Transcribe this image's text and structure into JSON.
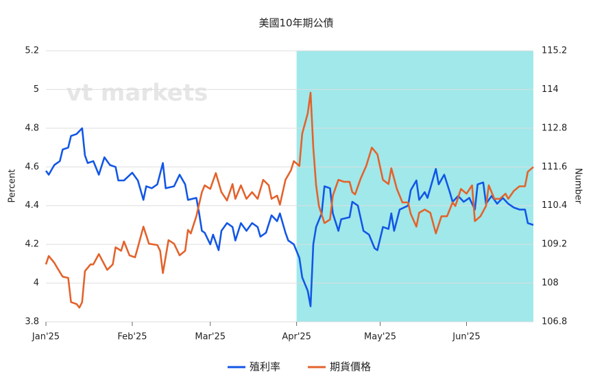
{
  "chart_data": {
    "type": "line",
    "title": "美國10年期公債",
    "watermark": "vt markets",
    "y_label": "Percent",
    "y2_label": "Number",
    "xlim": [
      0,
      175
    ],
    "xticks": [
      {
        "value": 0,
        "label": "Jan'25"
      },
      {
        "value": 31,
        "label": "Feb'25"
      },
      {
        "value": 59,
        "label": "Mar'25"
      },
      {
        "value": 90,
        "label": "Apr'25"
      },
      {
        "value": 120,
        "label": "May'25"
      },
      {
        "value": 151,
        "label": "Jun'25"
      }
    ],
    "ylim": [
      3.8,
      5.2
    ],
    "yticks": [
      3.8,
      4,
      4.2,
      4.4,
      4.6,
      4.8,
      5,
      5.2
    ],
    "y2lim": [
      106.8,
      115.2
    ],
    "y2ticks": [
      106.8,
      108,
      109.2,
      110.4,
      111.6,
      112.8,
      114,
      115.2
    ],
    "grid": true,
    "shaded_range": [
      90,
      175
    ],
    "shade_color": "#a0e8ea",
    "legend": "bottom",
    "series": [
      {
        "name": "殖利率",
        "color": "#1256e6",
        "x": [
          0,
          1,
          3,
          5,
          6,
          8,
          9,
          11,
          13,
          14,
          15,
          17,
          19,
          21,
          23,
          25,
          26,
          28,
          31,
          33,
          35,
          36,
          38,
          40,
          42,
          43,
          46,
          48,
          50,
          51,
          54,
          55,
          56,
          57,
          59,
          60,
          62,
          63,
          65,
          67,
          68,
          70,
          72,
          74,
          76,
          77,
          79,
          81,
          83,
          84,
          86,
          87,
          89,
          91,
          92,
          94,
          95,
          96,
          97,
          99,
          100,
          102,
          103,
          105,
          106,
          109,
          110,
          112,
          114,
          116,
          118,
          119,
          121,
          123,
          124,
          125,
          127,
          130,
          131,
          133,
          134,
          136,
          137,
          140,
          141,
          143,
          145,
          146,
          148,
          150,
          152,
          154,
          155,
          157,
          158,
          160,
          162,
          164,
          166,
          168,
          170,
          172,
          173,
          175
        ],
        "values": [
          4.58,
          4.56,
          4.61,
          4.63,
          4.69,
          4.7,
          4.76,
          4.77,
          4.8,
          4.66,
          4.62,
          4.63,
          4.56,
          4.65,
          4.61,
          4.6,
          4.53,
          4.53,
          4.57,
          4.53,
          4.43,
          4.5,
          4.49,
          4.51,
          4.62,
          4.49,
          4.5,
          4.56,
          4.51,
          4.43,
          4.44,
          4.36,
          4.27,
          4.26,
          4.2,
          4.25,
          4.17,
          4.27,
          4.31,
          4.29,
          4.22,
          4.31,
          4.27,
          4.31,
          4.29,
          4.24,
          4.26,
          4.35,
          4.32,
          4.36,
          4.26,
          4.22,
          4.2,
          4.13,
          4.03,
          3.96,
          3.88,
          4.2,
          4.29,
          4.36,
          4.5,
          4.49,
          4.36,
          4.27,
          4.33,
          4.34,
          4.42,
          4.4,
          4.27,
          4.25,
          4.18,
          4.17,
          4.29,
          4.28,
          4.36,
          4.27,
          4.38,
          4.4,
          4.48,
          4.53,
          4.43,
          4.47,
          4.44,
          4.59,
          4.51,
          4.56,
          4.47,
          4.42,
          4.45,
          4.42,
          4.44,
          4.38,
          4.51,
          4.52,
          4.41,
          4.45,
          4.41,
          4.44,
          4.41,
          4.39,
          4.38,
          4.38,
          4.31,
          4.3
        ]
      },
      {
        "name": "期貨價格",
        "color": "#e3622b",
        "axis": "y2",
        "x": [
          0,
          1,
          3,
          4,
          6,
          8,
          9,
          11,
          12,
          13,
          14,
          16,
          17,
          19,
          22,
          24,
          25,
          27,
          28,
          30,
          32,
          33,
          35,
          37,
          40,
          41,
          42,
          44,
          46,
          48,
          50,
          51,
          52,
          54,
          56,
          57,
          59,
          61,
          63,
          65,
          67,
          68,
          70,
          72,
          74,
          76,
          78,
          80,
          81,
          83,
          84,
          86,
          88,
          89,
          91,
          92,
          94,
          95,
          96,
          97,
          98,
          100,
          102,
          103,
          105,
          107,
          109,
          110,
          111,
          113,
          115,
          117,
          119,
          121,
          123,
          124,
          126,
          128,
          130,
          131,
          133,
          134,
          136,
          138,
          140,
          142,
          144,
          146,
          147,
          149,
          151,
          153,
          154,
          156,
          158,
          159,
          161,
          163,
          165,
          166,
          168,
          170,
          172,
          173,
          175
        ],
        "values": [
          108.58,
          108.84,
          108.63,
          108.48,
          108.2,
          108.16,
          107.41,
          107.35,
          107.24,
          107.41,
          108.37,
          108.58,
          108.58,
          108.9,
          108.41,
          108.58,
          109.11,
          109.0,
          109.29,
          108.86,
          108.8,
          109.11,
          109.75,
          109.22,
          109.18,
          109.0,
          108.31,
          109.33,
          109.22,
          108.86,
          109.0,
          109.65,
          109.54,
          110.07,
          110.82,
          111.03,
          110.92,
          111.41,
          110.82,
          110.56,
          111.07,
          110.61,
          111.03,
          110.61,
          110.82,
          110.61,
          111.2,
          111.03,
          110.61,
          110.71,
          110.43,
          111.2,
          111.5,
          111.78,
          111.63,
          112.63,
          113.26,
          113.9,
          112.2,
          111.03,
          110.39,
          109.86,
          109.97,
          110.71,
          111.2,
          111.14,
          111.14,
          110.82,
          110.75,
          111.24,
          111.63,
          112.2,
          111.99,
          111.2,
          111.07,
          111.56,
          110.92,
          110.5,
          110.5,
          110.14,
          109.75,
          110.18,
          110.28,
          110.18,
          109.54,
          110.07,
          110.07,
          110.5,
          110.39,
          110.92,
          110.77,
          111.03,
          109.92,
          110.07,
          110.39,
          111.03,
          110.61,
          110.61,
          110.77,
          110.61,
          110.86,
          111.0,
          111.0,
          111.45,
          111.6
        ]
      }
    ]
  }
}
